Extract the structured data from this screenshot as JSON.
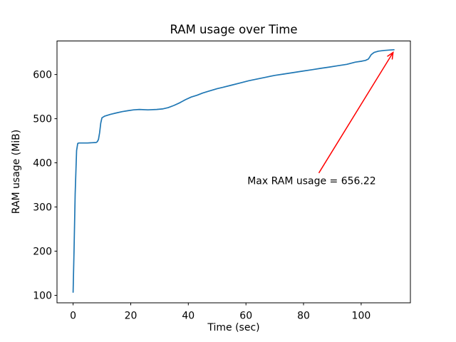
{
  "figure": {
    "background": "#ffffff"
  },
  "chart_data": {
    "type": "line",
    "title": "RAM usage over Time",
    "xlabel": "Time (sec)",
    "ylabel": "RAM usage (MiB)",
    "xlim": [
      -5.6,
      117.1
    ],
    "ylim": [
      83,
      676
    ],
    "xticks": [
      0,
      20,
      40,
      60,
      80,
      100
    ],
    "yticks": [
      100,
      200,
      300,
      400,
      500,
      600
    ],
    "grid": false,
    "legend": "none",
    "series": [
      {
        "color": "#1f77b4",
        "points": [
          [
            0,
            107
          ],
          [
            0.3,
            200
          ],
          [
            0.7,
            330
          ],
          [
            1.2,
            428
          ],
          [
            1.6,
            444
          ],
          [
            2,
            445
          ],
          [
            5,
            445
          ],
          [
            8,
            446
          ],
          [
            8.4,
            448
          ],
          [
            8.8,
            453
          ],
          [
            9.2,
            468
          ],
          [
            9.6,
            490
          ],
          [
            10,
            502
          ],
          [
            11,
            506
          ],
          [
            13,
            510
          ],
          [
            15,
            513
          ],
          [
            17,
            516
          ],
          [
            19,
            518
          ],
          [
            21,
            520
          ],
          [
            23,
            521
          ],
          [
            26,
            520
          ],
          [
            29,
            521
          ],
          [
            31,
            522
          ],
          [
            33,
            525
          ],
          [
            35,
            530
          ],
          [
            37,
            536
          ],
          [
            39,
            543
          ],
          [
            41,
            549
          ],
          [
            43,
            553
          ],
          [
            45,
            558
          ],
          [
            47,
            562
          ],
          [
            50,
            568
          ],
          [
            52,
            571
          ],
          [
            55,
            576
          ],
          [
            58,
            581
          ],
          [
            61,
            586
          ],
          [
            64,
            590
          ],
          [
            67,
            594
          ],
          [
            70,
            598
          ],
          [
            73,
            601
          ],
          [
            76,
            604
          ],
          [
            78,
            606
          ],
          [
            80,
            608
          ],
          [
            83,
            611
          ],
          [
            86,
            614
          ],
          [
            89,
            617
          ],
          [
            92,
            620
          ],
          [
            95,
            623
          ],
          [
            98,
            628
          ],
          [
            100,
            630
          ],
          [
            101.5,
            632
          ],
          [
            102.5,
            635
          ],
          [
            103.5,
            645
          ],
          [
            104.5,
            650
          ],
          [
            106,
            653
          ],
          [
            108,
            654.5
          ],
          [
            110,
            655.5
          ],
          [
            111.4,
            656.22
          ]
        ]
      }
    ],
    "annotation": {
      "text": "Max RAM usage = 656.22",
      "color": "#ff0000",
      "max_value": 656.22,
      "xy": [
        111.4,
        656.22
      ],
      "xytext": [
        60.5,
        352
      ],
      "arrow_from": [
        85.3,
        377
      ],
      "arrow_to": [
        111.1,
        650
      ]
    }
  }
}
